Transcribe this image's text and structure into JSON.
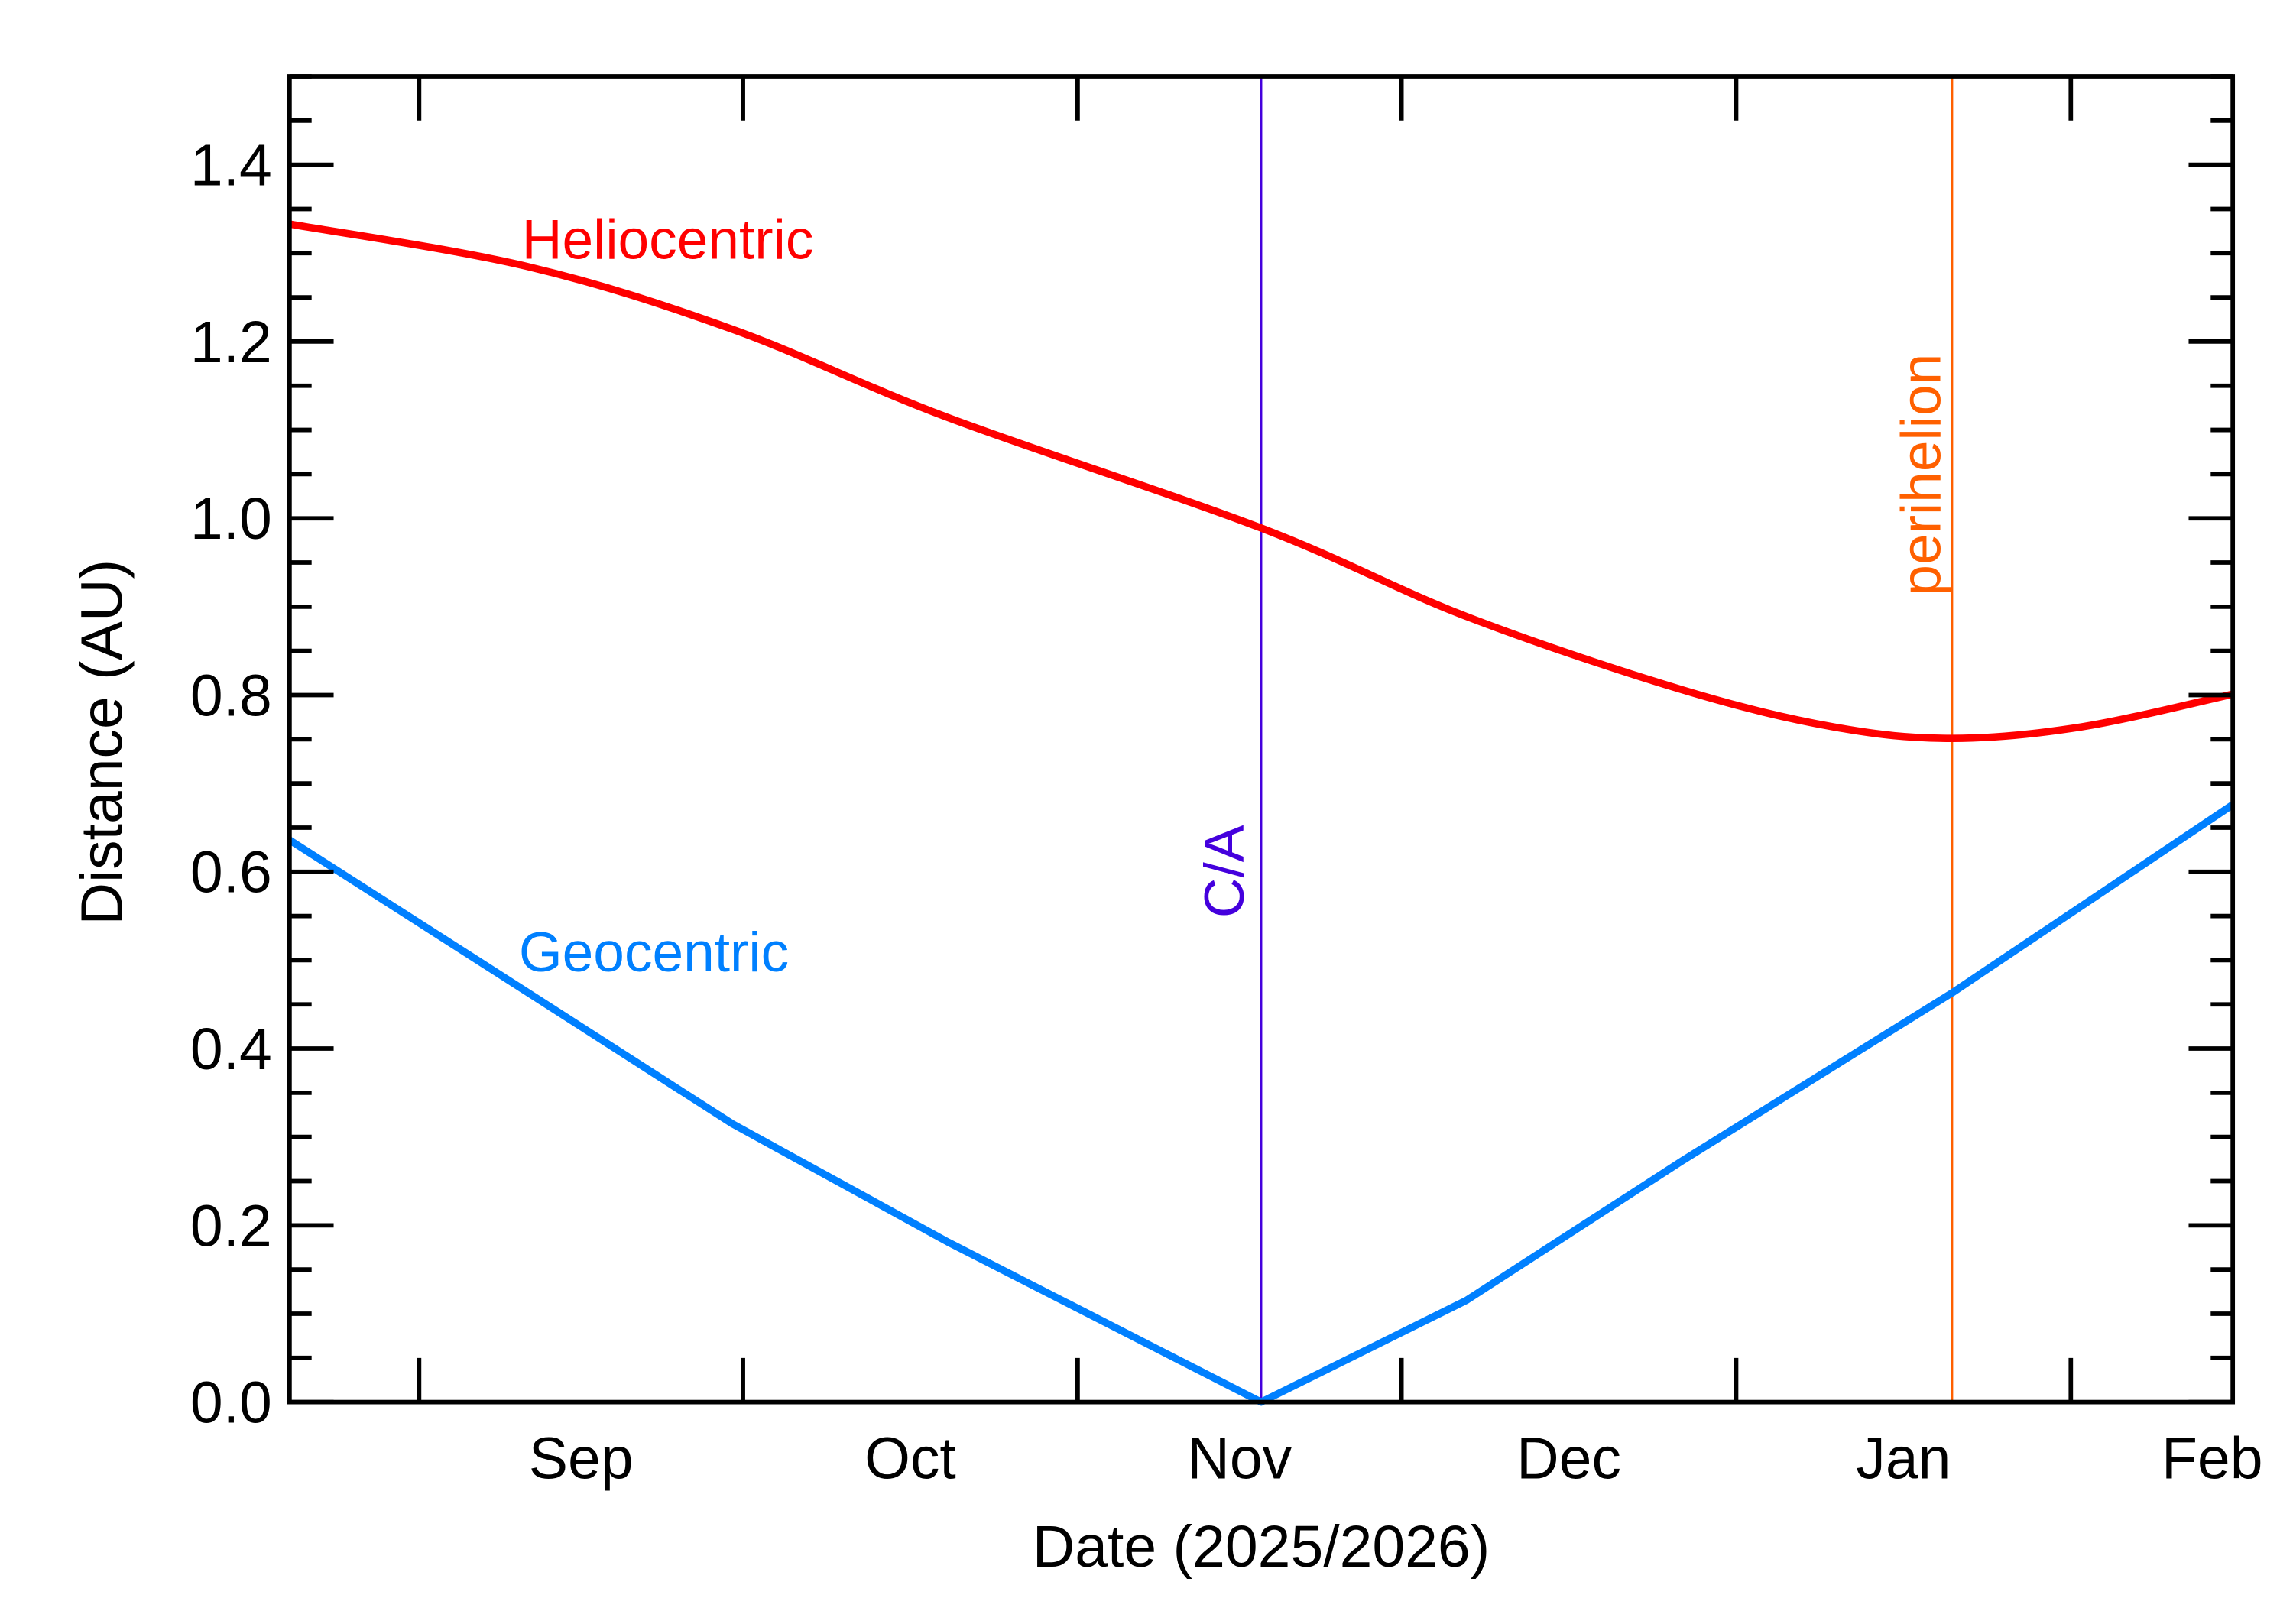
{
  "chart_data": {
    "type": "line",
    "xlabel": "Date (2025/2026)",
    "ylabel": "Distance (AU)",
    "xlim": [
      "2025-08-20",
      "2026-02-16"
    ],
    "ylim": [
      0,
      1.5
    ],
    "grid": false,
    "x_ticks": [
      {
        "date": "2025-09-01",
        "label": "Sep"
      },
      {
        "date": "2025-10-01",
        "label": "Oct"
      },
      {
        "date": "2025-11-01",
        "label": "Nov"
      },
      {
        "date": "2025-12-01",
        "label": "Dec"
      },
      {
        "date": "2026-01-01",
        "label": "Jan"
      },
      {
        "date": "2026-02-01",
        "label": "Feb"
      }
    ],
    "y_ticks": [
      "0.0",
      "0.2",
      "0.4",
      "0.6",
      "0.8",
      "1.0",
      "1.2",
      "1.4"
    ],
    "series": [
      {
        "name": "Heliocentric",
        "color": "#ff0000",
        "points": [
          [
            "2025-08-20",
            1.333
          ],
          [
            "2025-09-11",
            1.285
          ],
          [
            "2025-09-30",
            1.214
          ],
          [
            "2025-10-20",
            1.114
          ],
          [
            "2025-11-18",
            0.989
          ],
          [
            "2025-12-07",
            0.889
          ],
          [
            "2025-12-27",
            0.806
          ],
          [
            "2026-01-10",
            0.764
          ],
          [
            "2026-01-21",
            0.751
          ],
          [
            "2026-02-02",
            0.764
          ],
          [
            "2026-02-16",
            0.801
          ]
        ]
      },
      {
        "name": "Geocentric",
        "color": "#0080ff",
        "points": [
          [
            "2025-08-20",
            0.636
          ],
          [
            "2025-09-11",
            0.464
          ],
          [
            "2025-09-30",
            0.315
          ],
          [
            "2025-10-20",
            0.181
          ],
          [
            "2025-11-18",
            0.0
          ],
          [
            "2025-12-07",
            0.115
          ],
          [
            "2025-12-27",
            0.273
          ],
          [
            "2026-01-21",
            0.463
          ],
          [
            "2026-02-16",
            0.676
          ]
        ]
      }
    ],
    "annotations": [
      {
        "label": "C/A",
        "date": "2025-11-18",
        "color": "#4400dd"
      },
      {
        "label": "perihelion",
        "date": "2026-01-21",
        "color": "#ff6000"
      }
    ]
  }
}
